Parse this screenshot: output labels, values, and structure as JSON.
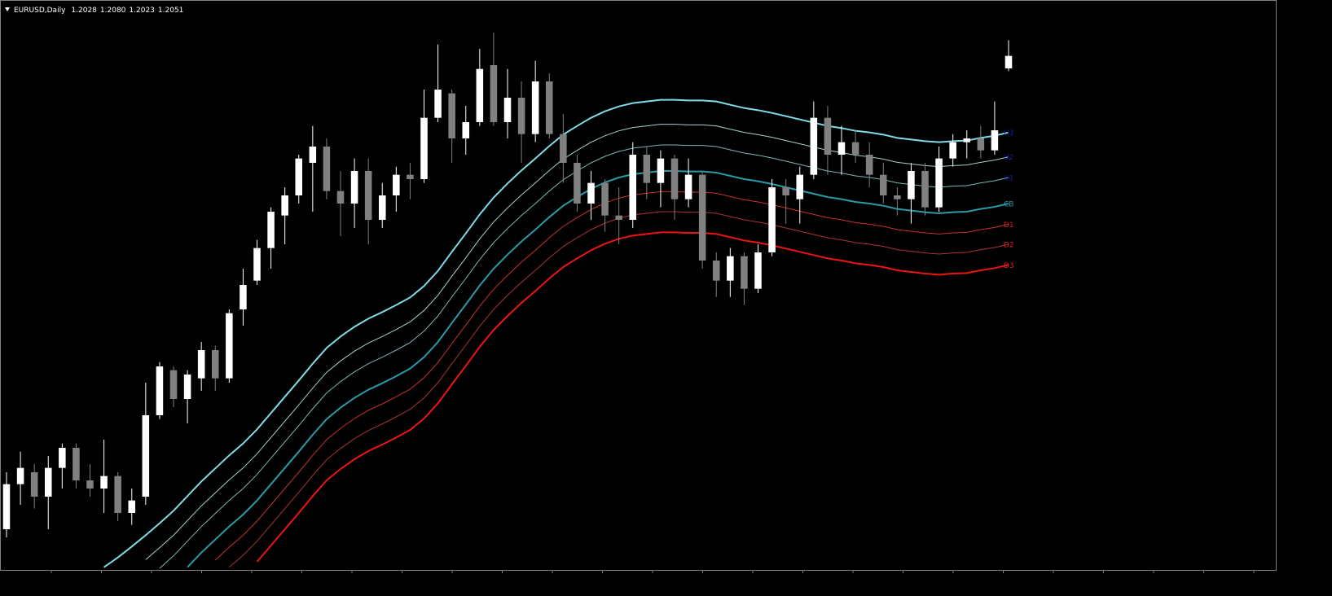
{
  "chart_data": {
    "type": "candlestick",
    "symbol": "EURUSD,Daily",
    "header_ohlc": [
      "1.2028",
      "1.2080",
      "1.2023",
      "1.2051"
    ],
    "up_color": "#ffffff",
    "down_color": "#808080",
    "ylim": [
      1.1104,
      1.2154
    ],
    "ohlc": [
      [
        1.1179,
        1.1284,
        1.1164,
        1.1262
      ],
      [
        1.1262,
        1.1322,
        1.1224,
        1.1292
      ],
      [
        1.1284,
        1.1299,
        1.1217,
        1.1239
      ],
      [
        1.1239,
        1.1314,
        1.1179,
        1.1292
      ],
      [
        1.1292,
        1.1337,
        1.1254,
        1.1329
      ],
      [
        1.1329,
        1.1337,
        1.1254,
        1.1269
      ],
      [
        1.1269,
        1.1299,
        1.1239,
        1.1254
      ],
      [
        1.1254,
        1.1344,
        1.1209,
        1.1277
      ],
      [
        1.1277,
        1.1284,
        1.1194,
        1.1209
      ],
      [
        1.1209,
        1.1254,
        1.1187,
        1.1232
      ],
      [
        1.1239,
        1.1449,
        1.1224,
        1.1389
      ],
      [
        1.1389,
        1.1487,
        1.1382,
        1.1479
      ],
      [
        1.1472,
        1.1479,
        1.1404,
        1.1419
      ],
      [
        1.1419,
        1.1472,
        1.1374,
        1.1464
      ],
      [
        1.1457,
        1.1524,
        1.1434,
        1.1509
      ],
      [
        1.1509,
        1.1517,
        1.1434,
        1.1457
      ],
      [
        1.1457,
        1.1584,
        1.1449,
        1.1577
      ],
      [
        1.1584,
        1.1659,
        1.1554,
        1.1629
      ],
      [
        1.1637,
        1.1712,
        1.1629,
        1.1697
      ],
      [
        1.1697,
        1.1772,
        1.1659,
        1.1764
      ],
      [
        1.1757,
        1.1809,
        1.1704,
        1.1794
      ],
      [
        1.1794,
        1.1869,
        1.1779,
        1.1862
      ],
      [
        1.1854,
        1.1922,
        1.1764,
        1.1884
      ],
      [
        1.1884,
        1.1899,
        1.1787,
        1.1802
      ],
      [
        1.1802,
        1.1839,
        1.1719,
        1.1779
      ],
      [
        1.1779,
        1.1862,
        1.1734,
        1.1839
      ],
      [
        1.1839,
        1.1862,
        1.1704,
        1.1749
      ],
      [
        1.1749,
        1.1817,
        1.1734,
        1.1794
      ],
      [
        1.1794,
        1.1847,
        1.1764,
        1.1832
      ],
      [
        1.1832,
        1.1854,
        1.1787,
        1.1824
      ],
      [
        1.1824,
        1.1989,
        1.1817,
        1.1937
      ],
      [
        1.1937,
        1.2072,
        1.1929,
        1.1989
      ],
      [
        1.1982,
        1.1989,
        1.1854,
        1.1899
      ],
      [
        1.1899,
        1.1959,
        1.1869,
        1.1929
      ],
      [
        1.1929,
        1.2064,
        1.1922,
        1.2027
      ],
      [
        1.2034,
        1.2094,
        1.1922,
        1.1929
      ],
      [
        1.1929,
        1.2027,
        1.1899,
        1.1974
      ],
      [
        1.1974,
        1.2004,
        1.1854,
        1.1907
      ],
      [
        1.1907,
        1.2042,
        1.1892,
        1.2004
      ],
      [
        1.2004,
        1.2019,
        1.1899,
        1.1907
      ],
      [
        1.1907,
        1.1944,
        1.1817,
        1.1854
      ],
      [
        1.1854,
        1.1869,
        1.1764,
        1.1779
      ],
      [
        1.1779,
        1.1839,
        1.1749,
        1.1817
      ],
      [
        1.1817,
        1.1824,
        1.1727,
        1.1757
      ],
      [
        1.1757,
        1.1809,
        1.1704,
        1.1749
      ],
      [
        1.1749,
        1.1892,
        1.1734,
        1.1869
      ],
      [
        1.1869,
        1.1884,
        1.1787,
        1.1817
      ],
      [
        1.1817,
        1.1877,
        1.1772,
        1.1862
      ],
      [
        1.1862,
        1.1869,
        1.1749,
        1.1787
      ],
      [
        1.1787,
        1.1862,
        1.1772,
        1.1832
      ],
      [
        1.1832,
        1.1839,
        1.1659,
        1.1674
      ],
      [
        1.1674,
        1.1689,
        1.1607,
        1.1637
      ],
      [
        1.1637,
        1.1697,
        1.1607,
        1.1682
      ],
      [
        1.1682,
        1.1689,
        1.1592,
        1.1622
      ],
      [
        1.1622,
        1.1704,
        1.1614,
        1.1689
      ],
      [
        1.1689,
        1.1824,
        1.1682,
        1.1809
      ],
      [
        1.1809,
        1.1824,
        1.1742,
        1.1794
      ],
      [
        1.1787,
        1.1847,
        1.1742,
        1.1832
      ],
      [
        1.1832,
        1.1967,
        1.1824,
        1.1937
      ],
      [
        1.1937,
        1.1959,
        1.1832,
        1.1869
      ],
      [
        1.1869,
        1.1922,
        1.1832,
        1.1892
      ],
      [
        1.1892,
        1.1914,
        1.1854,
        1.1869
      ],
      [
        1.1869,
        1.1892,
        1.1809,
        1.1832
      ],
      [
        1.1832,
        1.1854,
        1.1779,
        1.1794
      ],
      [
        1.1794,
        1.1809,
        1.1757,
        1.1787
      ],
      [
        1.1787,
        1.1854,
        1.1742,
        1.1839
      ],
      [
        1.1839,
        1.1854,
        1.1757,
        1.1772
      ],
      [
        1.1772,
        1.1884,
        1.1764,
        1.1862
      ],
      [
        1.1862,
        1.1907,
        1.1847,
        1.1892
      ],
      [
        1.1892,
        1.1914,
        1.1862,
        1.1899
      ],
      [
        1.1899,
        1.1922,
        1.1862,
        1.1877
      ],
      [
        1.1877,
        1.1967,
        1.1869,
        1.1914
      ],
      [
        1.2028,
        1.208,
        1.2023,
        1.2051
      ]
    ],
    "series": [
      {
        "name": "U3",
        "color": "#7fdce6",
        "label_color": "#1a1aa8",
        "values": [
          null,
          null,
          null,
          null,
          null,
          null,
          null,
          1.1109,
          1.1127,
          1.1147,
          1.1168,
          1.119,
          1.1213,
          1.124,
          1.1267,
          1.1291,
          1.1315,
          1.1337,
          1.1363,
          1.1393,
          1.1423,
          1.1453,
          1.1484,
          1.1513,
          1.1534,
          1.1552,
          1.1567,
          1.1579,
          1.1592,
          1.1606,
          1.1627,
          1.1655,
          1.169,
          1.1724,
          1.1759,
          1.179,
          1.1816,
          1.184,
          1.1862,
          1.1885,
          1.1906,
          1.1922,
          1.1937,
          1.1949,
          1.1958,
          1.1964,
          1.1967,
          1.197,
          1.197,
          1.1969,
          1.1969,
          1.1967,
          1.1961,
          1.1955,
          1.1951,
          1.1946,
          1.194,
          1.1934,
          1.1928,
          1.1922,
          1.1918,
          1.1913,
          1.191,
          1.1906,
          1.19,
          1.1897,
          1.1894,
          1.1892,
          1.1894,
          1.1895,
          1.19,
          1.1904,
          1.191
        ]
      },
      {
        "name": "U2",
        "color": "#a8d0d0",
        "label_color": "#1a1aa8",
        "values": [
          null,
          null,
          null,
          null,
          null,
          null,
          null,
          null,
          null,
          null,
          1.1123,
          1.1145,
          1.1168,
          1.1195,
          1.1222,
          1.1246,
          1.127,
          1.1292,
          1.1318,
          1.1348,
          1.1378,
          1.1408,
          1.1439,
          1.1468,
          1.1489,
          1.1507,
          1.1522,
          1.1534,
          1.1547,
          1.1561,
          1.1582,
          1.161,
          1.1645,
          1.1679,
          1.1714,
          1.1745,
          1.1771,
          1.1795,
          1.1817,
          1.184,
          1.1861,
          1.1877,
          1.1892,
          1.1904,
          1.1913,
          1.1919,
          1.1922,
          1.1925,
          1.1925,
          1.1924,
          1.1924,
          1.1922,
          1.1916,
          1.191,
          1.1906,
          1.1901,
          1.1895,
          1.1889,
          1.1883,
          1.1877,
          1.1873,
          1.1868,
          1.1865,
          1.1861,
          1.1855,
          1.1852,
          1.1849,
          1.1847,
          1.1849,
          1.185,
          1.1855,
          1.1859,
          1.1865
        ]
      },
      {
        "name": "U1",
        "color": "#7fb4b4",
        "label_color": "#1a1aa8",
        "values": [
          null,
          null,
          null,
          null,
          null,
          null,
          null,
          null,
          null,
          null,
          null,
          1.1107,
          1.113,
          1.1157,
          1.1184,
          1.1208,
          1.1232,
          1.1254,
          1.128,
          1.131,
          1.134,
          1.137,
          1.1401,
          1.143,
          1.1451,
          1.1469,
          1.1484,
          1.1496,
          1.1509,
          1.1523,
          1.1544,
          1.1572,
          1.1607,
          1.1641,
          1.1676,
          1.1707,
          1.1733,
          1.1757,
          1.1779,
          1.1802,
          1.1823,
          1.1839,
          1.1854,
          1.1866,
          1.1875,
          1.1881,
          1.1884,
          1.1887,
          1.1887,
          1.1886,
          1.1886,
          1.1884,
          1.1878,
          1.1872,
          1.1868,
          1.1863,
          1.1857,
          1.1851,
          1.1845,
          1.1839,
          1.1835,
          1.183,
          1.1827,
          1.1823,
          1.1817,
          1.1814,
          1.1811,
          1.1809,
          1.1811,
          1.1812,
          1.1817,
          1.1821,
          1.1827
        ]
      },
      {
        "name": "CB",
        "color": "#2a9aa6",
        "label_color": "#2a9aa6",
        "values": [
          null,
          null,
          null,
          null,
          null,
          null,
          null,
          null,
          null,
          null,
          null,
          null,
          null,
          1.1109,
          1.1136,
          1.116,
          1.1184,
          1.1206,
          1.1232,
          1.1262,
          1.1292,
          1.1322,
          1.1353,
          1.1382,
          1.1403,
          1.1421,
          1.1436,
          1.1448,
          1.1461,
          1.1475,
          1.1496,
          1.1524,
          1.1559,
          1.1593,
          1.1628,
          1.1659,
          1.1685,
          1.1709,
          1.1731,
          1.1754,
          1.1775,
          1.1791,
          1.1806,
          1.1818,
          1.1827,
          1.1833,
          1.1836,
          1.1839,
          1.1839,
          1.1838,
          1.1838,
          1.1836,
          1.183,
          1.1824,
          1.182,
          1.1815,
          1.1809,
          1.1803,
          1.1797,
          1.1791,
          1.1787,
          1.1782,
          1.1779,
          1.1775,
          1.1769,
          1.1766,
          1.1763,
          1.1761,
          1.1763,
          1.1764,
          1.1769,
          1.1773,
          1.1779
        ]
      },
      {
        "name": "D1",
        "color": "#c83030",
        "label_color": "#e02020",
        "values": [
          null,
          null,
          null,
          null,
          null,
          null,
          null,
          null,
          null,
          null,
          null,
          null,
          null,
          null,
          null,
          1.1122,
          1.1146,
          1.1168,
          1.1194,
          1.1224,
          1.1254,
          1.1284,
          1.1315,
          1.1344,
          1.1365,
          1.1383,
          1.1398,
          1.141,
          1.1423,
          1.1437,
          1.1458,
          1.1486,
          1.1521,
          1.1555,
          1.159,
          1.1621,
          1.1647,
          1.1671,
          1.1693,
          1.1716,
          1.1737,
          1.1753,
          1.1768,
          1.178,
          1.1789,
          1.1795,
          1.1798,
          1.1801,
          1.1801,
          1.18,
          1.18,
          1.1798,
          1.1792,
          1.1786,
          1.1782,
          1.1777,
          1.1771,
          1.1765,
          1.1759,
          1.1753,
          1.1749,
          1.1744,
          1.1741,
          1.1737,
          1.1731,
          1.1728,
          1.1725,
          1.1723,
          1.1725,
          1.1726,
          1.1731,
          1.1735,
          1.1741
        ]
      },
      {
        "name": "D2",
        "color": "#a83434",
        "label_color": "#e02020",
        "values": [
          null,
          null,
          null,
          null,
          null,
          null,
          null,
          null,
          null,
          null,
          null,
          null,
          null,
          null,
          null,
          null,
          1.1109,
          1.1131,
          1.1157,
          1.1187,
          1.1217,
          1.1247,
          1.1278,
          1.1307,
          1.1328,
          1.1346,
          1.1361,
          1.1373,
          1.1386,
          1.14,
          1.1421,
          1.1449,
          1.1484,
          1.1518,
          1.1553,
          1.1584,
          1.161,
          1.1634,
          1.1656,
          1.1679,
          1.17,
          1.1716,
          1.1731,
          1.1743,
          1.1752,
          1.1758,
          1.1761,
          1.1764,
          1.1764,
          1.1763,
          1.1763,
          1.1761,
          1.1755,
          1.1749,
          1.1745,
          1.174,
          1.1734,
          1.1728,
          1.1722,
          1.1716,
          1.1712,
          1.1707,
          1.1704,
          1.17,
          1.1694,
          1.1691,
          1.1688,
          1.1686,
          1.1688,
          1.1689,
          1.1694,
          1.1698,
          1.1704
        ]
      },
      {
        "name": "D3",
        "color": "#ee1414",
        "label_color": "#e02020",
        "values": [
          null,
          null,
          null,
          null,
          null,
          null,
          null,
          null,
          null,
          null,
          null,
          null,
          null,
          null,
          null,
          null,
          null,
          null,
          1.1119,
          1.1149,
          1.1179,
          1.1209,
          1.124,
          1.1269,
          1.129,
          1.1308,
          1.1323,
          1.1335,
          1.1348,
          1.1362,
          1.1383,
          1.1411,
          1.1446,
          1.148,
          1.1515,
          1.1546,
          1.1572,
          1.1596,
          1.1618,
          1.1641,
          1.1662,
          1.1678,
          1.1693,
          1.1705,
          1.1714,
          1.172,
          1.1723,
          1.1726,
          1.1726,
          1.1725,
          1.1725,
          1.1723,
          1.1717,
          1.1711,
          1.1707,
          1.1702,
          1.1696,
          1.169,
          1.1684,
          1.1678,
          1.1674,
          1.1669,
          1.1666,
          1.1662,
          1.1656,
          1.1653,
          1.165,
          1.1648,
          1.165,
          1.1651,
          1.1656,
          1.166,
          1.1666
        ]
      }
    ]
  }
}
